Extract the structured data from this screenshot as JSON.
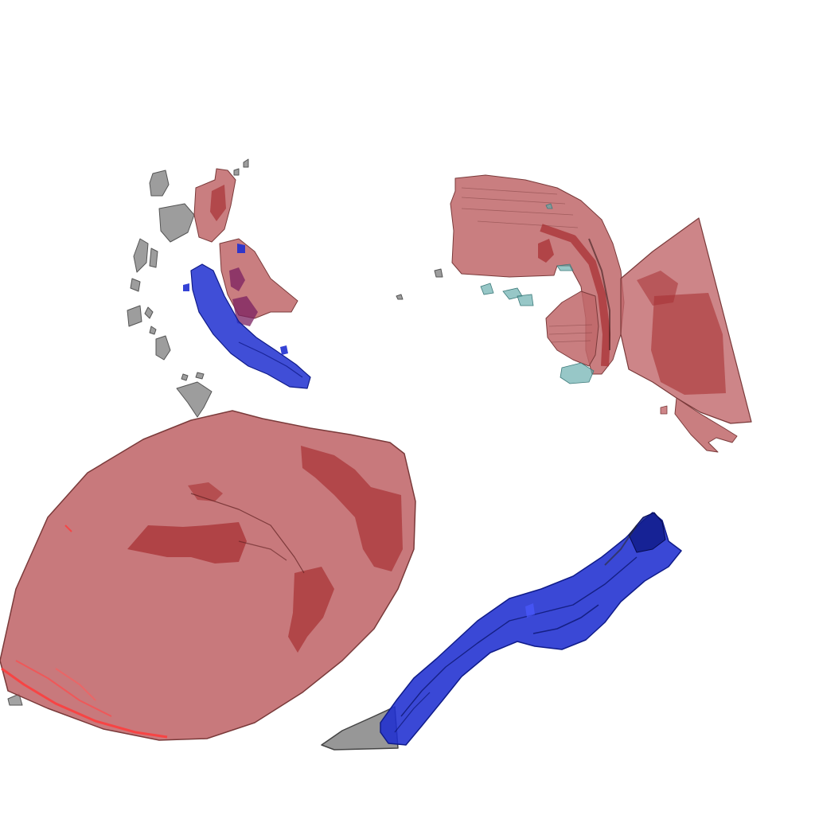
{
  "scene": {
    "background": "#ffffff",
    "colors": {
      "red_translucent": "#c0676a",
      "red_dark": "#a83234",
      "red_highlight": "#ff3b3b",
      "blue": "#1f2fd0",
      "blue_dark": "#101c8a",
      "gray": "#8c8c8c",
      "teal": "#5fa9a9",
      "purple": "#7a2060"
    },
    "structures": [
      {
        "name": "large-red-mass",
        "color": "red_translucent"
      },
      {
        "name": "upper-right-red-mass",
        "color": "red_translucent"
      },
      {
        "name": "upper-left-red-fragments",
        "color": "red_translucent"
      },
      {
        "name": "upper-left-blue-fragment",
        "color": "blue"
      },
      {
        "name": "lower-right-blue-tube",
        "color": "blue"
      },
      {
        "name": "gray-fragments",
        "color": "gray"
      },
      {
        "name": "teal-fragments",
        "color": "teal"
      }
    ]
  }
}
